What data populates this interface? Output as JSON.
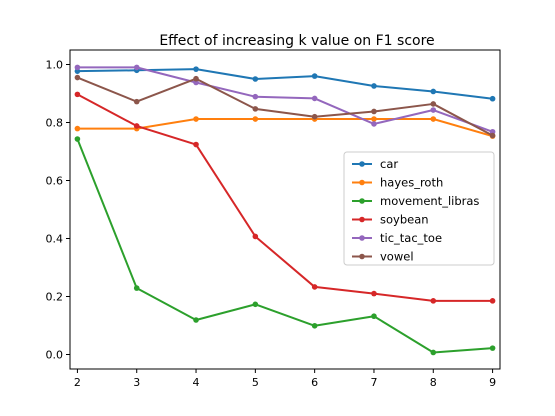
{
  "chart_data": {
    "type": "line",
    "title": "Effect of increasing k value on F1 score",
    "xlabel": "",
    "ylabel": "",
    "x": [
      2,
      3,
      4,
      5,
      6,
      7,
      8,
      9
    ],
    "xlim": [
      1.875,
      9.125
    ],
    "ylim": [
      -0.05,
      1.05
    ],
    "xticks": [
      2,
      3,
      4,
      5,
      6,
      7,
      8,
      9
    ],
    "yticks": [
      0.0,
      0.2,
      0.4,
      0.6,
      0.8,
      1.0
    ],
    "grid": false,
    "legend": "center-right",
    "series": [
      {
        "name": "car",
        "color": "#1f77b4",
        "values": [
          0.977,
          0.98,
          0.984,
          0.95,
          0.96,
          0.926,
          0.907,
          0.882
        ]
      },
      {
        "name": "hayes_roth",
        "color": "#ff7f0e",
        "values": [
          0.779,
          0.779,
          0.812,
          0.812,
          0.812,
          0.812,
          0.812,
          0.753
        ]
      },
      {
        "name": "movement_libras",
        "color": "#2ca02c",
        "values": [
          0.743,
          0.229,
          0.119,
          0.173,
          0.099,
          0.132,
          0.007,
          0.022
        ]
      },
      {
        "name": "soybean",
        "color": "#d62728",
        "values": [
          0.897,
          0.788,
          0.724,
          0.407,
          0.233,
          0.21,
          0.185,
          0.185
        ]
      },
      {
        "name": "tic_tac_toe",
        "color": "#9467bd",
        "values": [
          0.99,
          0.99,
          0.938,
          0.889,
          0.883,
          0.795,
          0.843,
          0.768
        ]
      },
      {
        "name": "vowel",
        "color": "#8c564b",
        "values": [
          0.955,
          0.872,
          0.951,
          0.847,
          0.82,
          0.838,
          0.864,
          0.755
        ]
      }
    ]
  }
}
